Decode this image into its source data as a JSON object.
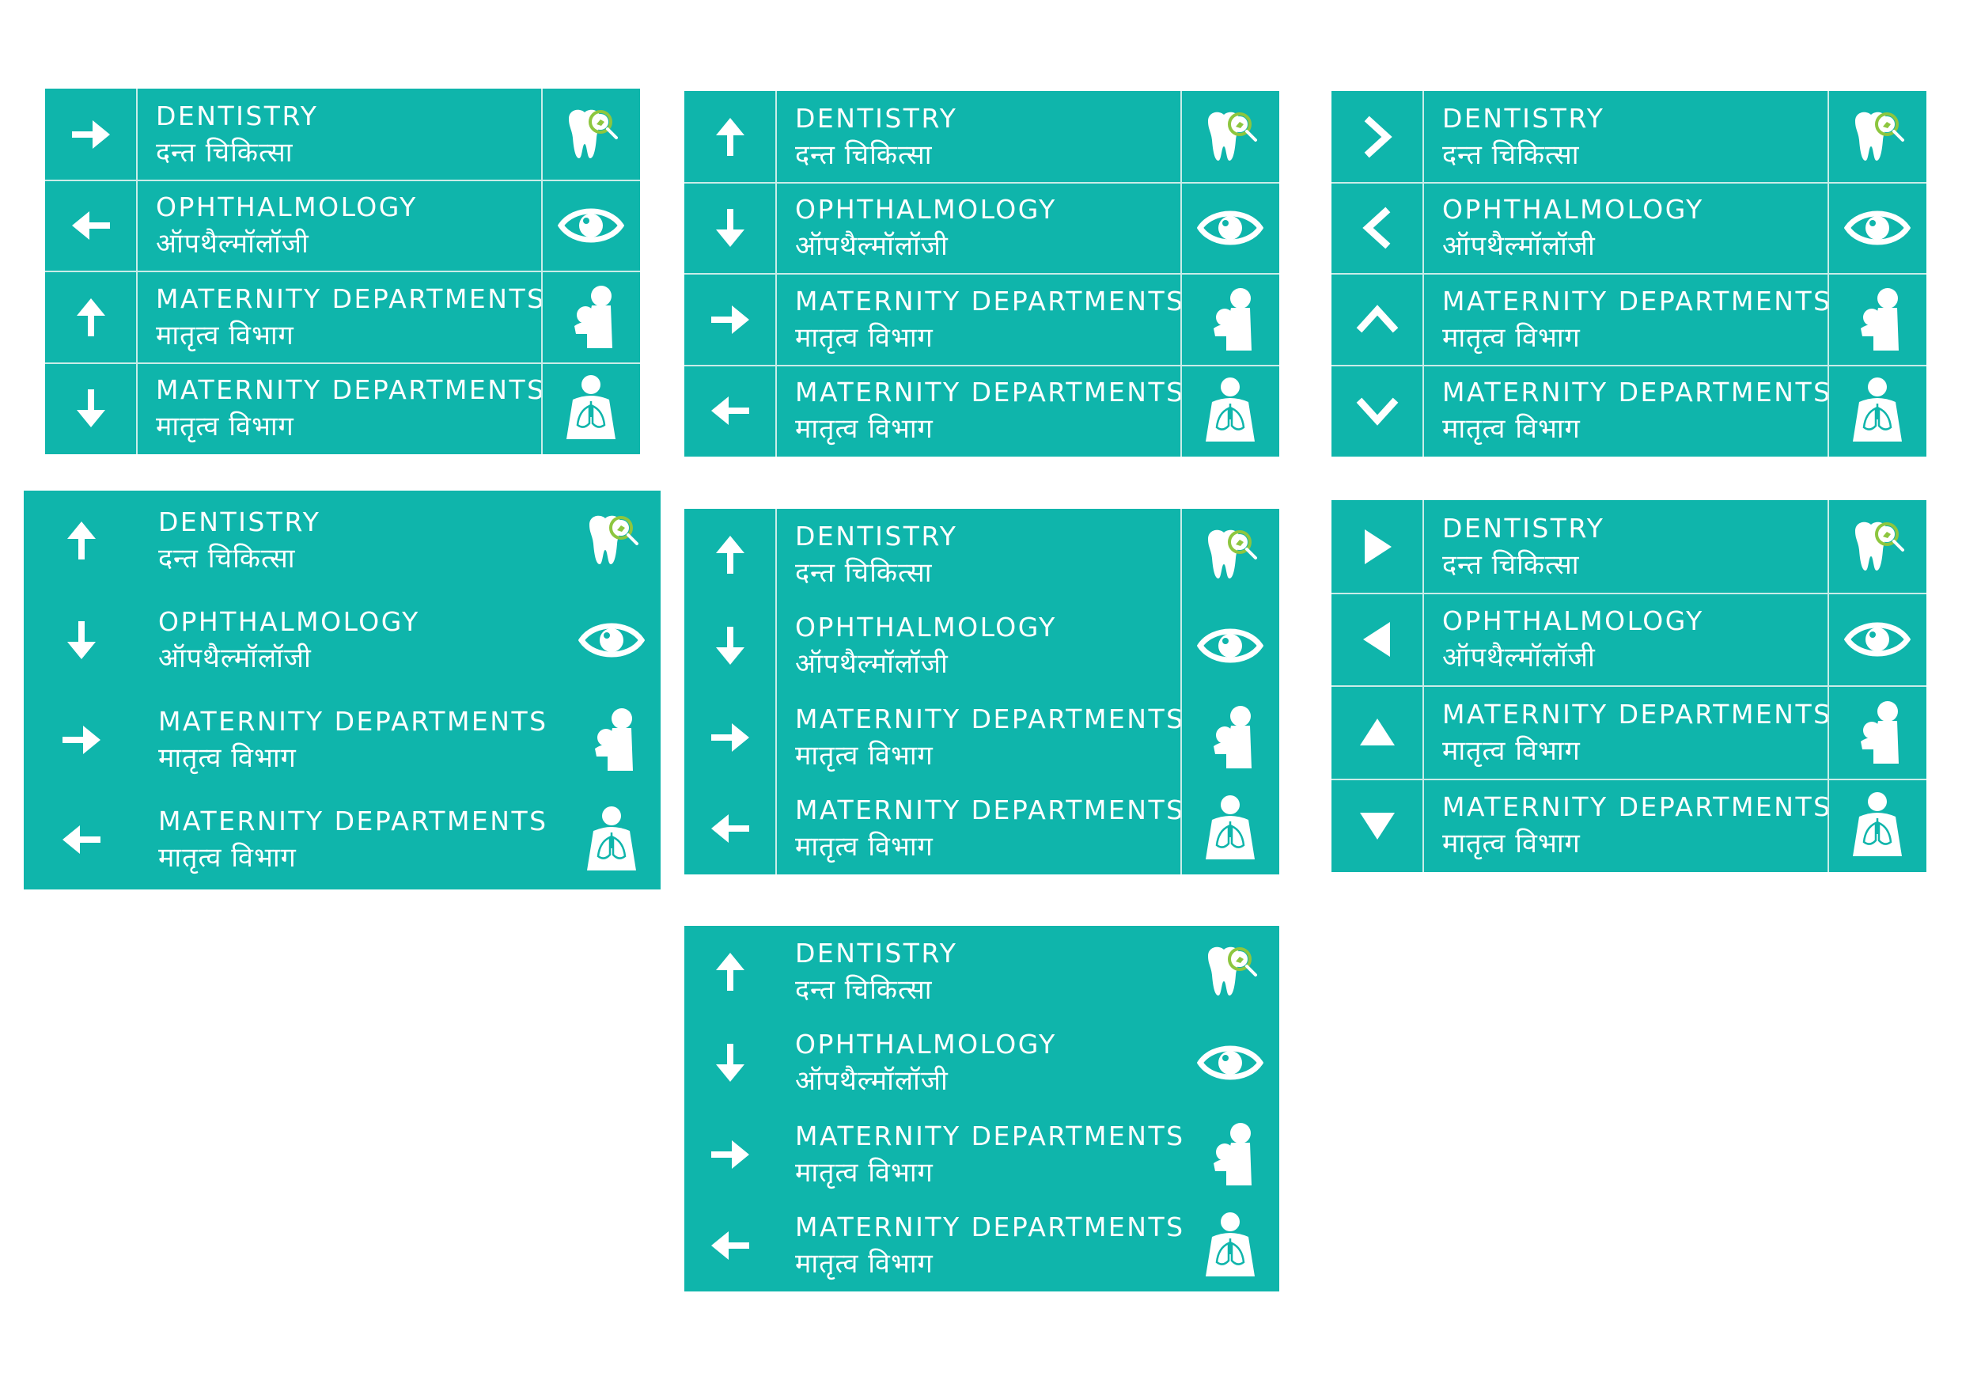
{
  "colors": {
    "sign_bg": "#0fb5ab",
    "divider": "#c9ece8",
    "text": "#ffffff",
    "accent": "#8dc63f"
  },
  "departments": {
    "dentistry": {
      "en": "DENTISTRY",
      "hi": "दन्त चिकित्सा",
      "icon": "tooth-magnifier-icon"
    },
    "ophthalmology": {
      "en": "OPHTHALMOLOGY",
      "hi": "ऑपथैल्मॉलॉजी",
      "icon": "eye-icon"
    },
    "maternity": {
      "en": "MATERNITY DEPARTMENTS",
      "hi": "मातृत्व विभाग",
      "icon": "mother-child-icon"
    },
    "maternity_lungs": {
      "en": "MATERNITY DEPARTMENTS",
      "hi": "मातृत्व विभाग",
      "icon": "person-lungs-icon"
    }
  },
  "signs": [
    {
      "name": "sign-1",
      "grid": true,
      "arrows": [
        "arrow-right",
        "arrow-left",
        "arrow-up",
        "arrow-down"
      ]
    },
    {
      "name": "sign-2",
      "grid": true,
      "arrows": [
        "arrow-up",
        "arrow-down",
        "arrow-right",
        "arrow-left"
      ]
    },
    {
      "name": "sign-3",
      "grid": true,
      "arrows": [
        "chevron-right",
        "chevron-left",
        "chevron-up",
        "chevron-down"
      ]
    },
    {
      "name": "sign-4",
      "grid": false,
      "arrows": [
        "arrow-up",
        "arrow-down",
        "arrow-right",
        "arrow-left"
      ]
    },
    {
      "name": "sign-5",
      "grid": "vertical",
      "arrows": [
        "arrow-up",
        "arrow-down",
        "arrow-right",
        "arrow-left"
      ]
    },
    {
      "name": "sign-6",
      "grid": true,
      "arrows": [
        "triangle-right",
        "triangle-left",
        "triangle-up",
        "triangle-down"
      ]
    },
    {
      "name": "sign-7",
      "grid": false,
      "arrows": [
        "arrow-up",
        "arrow-down",
        "arrow-right",
        "arrow-left"
      ]
    }
  ]
}
